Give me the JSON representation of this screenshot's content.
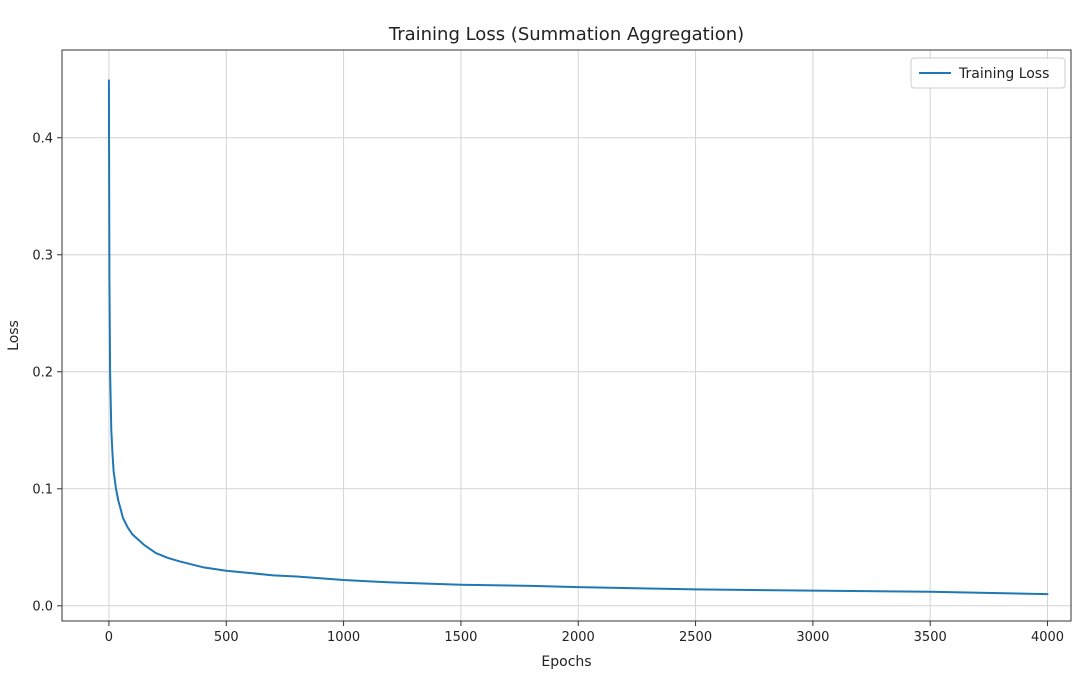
{
  "chart_data": {
    "type": "line",
    "title": "Training Loss (Summation Aggregation)",
    "xlabel": "Epochs",
    "ylabel": "Loss",
    "xlim": [
      -200,
      4100
    ],
    "ylim": [
      -0.013,
      0.475
    ],
    "xticks": [
      0,
      500,
      1000,
      1500,
      2000,
      2500,
      3000,
      3500,
      4000
    ],
    "yticks": [
      0.0,
      0.1,
      0.2,
      0.3,
      0.4
    ],
    "xtick_labels": [
      "0",
      "500",
      "1000",
      "1500",
      "2000",
      "2500",
      "3000",
      "3500",
      "4000"
    ],
    "ytick_labels": [
      "0.0",
      "0.1",
      "0.2",
      "0.3",
      "0.4"
    ],
    "grid": true,
    "legend_position": "top-right",
    "series": [
      {
        "name": "Training Loss",
        "color": "#1f77b4",
        "x": [
          0,
          2,
          5,
          10,
          15,
          20,
          30,
          40,
          60,
          80,
          100,
          150,
          200,
          250,
          300,
          400,
          500,
          600,
          700,
          800,
          1000,
          1200,
          1500,
          1800,
          2000,
          2500,
          3000,
          3500,
          4000
        ],
        "y": [
          0.449,
          0.28,
          0.2,
          0.15,
          0.13,
          0.115,
          0.1,
          0.09,
          0.075,
          0.067,
          0.061,
          0.052,
          0.045,
          0.041,
          0.038,
          0.033,
          0.03,
          0.028,
          0.026,
          0.025,
          0.022,
          0.02,
          0.018,
          0.017,
          0.016,
          0.014,
          0.013,
          0.012,
          0.01
        ]
      }
    ]
  }
}
